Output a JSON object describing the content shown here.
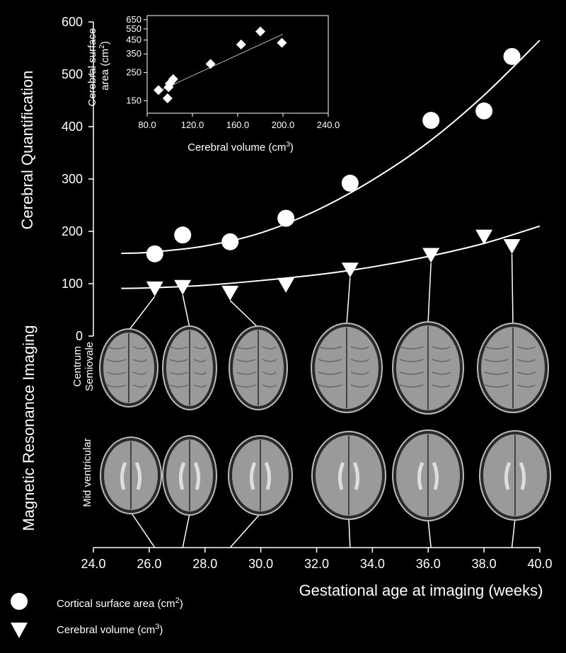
{
  "chart_data": [
    {
      "type": "scatter",
      "xlabel": "Gestational age at imaging (weeks)",
      "ylabel": "Cerebral Quantification",
      "xlim": [
        24,
        40
      ],
      "ylim": [
        0,
        600
      ],
      "xticks": [
        "24.0",
        "26.0",
        "28.0",
        "30.0",
        "32.0",
        "34.0",
        "36.0",
        "38.0",
        "40.0"
      ],
      "yticks": [
        "0",
        "100",
        "200",
        "300",
        "400",
        "500",
        "600"
      ],
      "series": [
        {
          "name": "Cortical surface area (cm2)",
          "marker": "circle",
          "x": [
            26.2,
            27.2,
            28.9,
            30.9,
            33.2,
            36.1,
            38.0,
            39.0
          ],
          "y": [
            157,
            193,
            180,
            225,
            292,
            412,
            430,
            534
          ]
        },
        {
          "name": "Cerebral volume (cm3)",
          "marker": "triangle-down",
          "x": [
            26.2,
            27.2,
            28.9,
            30.9,
            33.2,
            36.1,
            38.0,
            39.0
          ],
          "y": [
            92,
            95,
            84,
            99,
            128,
            156,
            191,
            173
          ]
        }
      ],
      "fits": [
        {
          "series": "Cortical surface area (cm2)",
          "x": [
            25.0,
            26.0,
            28.0,
            30.0,
            32.0,
            34.0,
            36.0,
            38.0,
            40.0
          ],
          "y": [
            158,
            160,
            172,
            197,
            240,
            298,
            370,
            460,
            565
          ]
        },
        {
          "series": "Cerebral volume (cm3)",
          "x": [
            25.0,
            26.0,
            28.0,
            30.0,
            32.0,
            34.0,
            36.0,
            38.0,
            40.0
          ],
          "y": [
            91,
            92,
            97,
            106,
            117,
            132,
            152,
            177,
            210
          ]
        }
      ],
      "legend_position": "bottom-left",
      "grid": false
    },
    {
      "type": "scatter",
      "xlabel": "Cerebral volume (cm3)",
      "ylabel": "Cerebral surface area (cm2)",
      "xlim": [
        80,
        240
      ],
      "y_scale": "log",
      "xticks": [
        "80.0",
        "120.0",
        "160.0",
        "200.0",
        "240.0"
      ],
      "yticks": [
        "150",
        "250",
        "350",
        "450",
        "550",
        "650"
      ],
      "x": [
        90,
        98,
        99,
        100,
        103,
        136,
        163,
        180,
        199
      ],
      "y": [
        182,
        157,
        192,
        205,
        222,
        292,
        415,
        525,
        428
      ],
      "fit": {
        "x": [
          88,
          200
        ],
        "y": [
          175,
          500
        ]
      }
    }
  ],
  "panel": {
    "y_title": "Magnetic Resonance Imaging",
    "rows": [
      "Centrum Semiovale",
      "Mid ventricular"
    ]
  },
  "legend": {
    "circle_label": "Cortical surface area (cm",
    "circle_sup": "2",
    "circle_close": ")",
    "triangle_label": "Cerebral volume (cm",
    "triangle_sup": "3",
    "triangle_close": ")"
  },
  "inset_labels": {
    "ylabel_line1": "Cerebral surface",
    "ylabel_line2": "area (cm",
    "ylabel_sup": "2",
    "ylabel_close": ")",
    "xlabel": "Cerebral volume (cm",
    "xlabel_sup": "3",
    "xlabel_close": ")"
  },
  "colors": {
    "background": "#000000",
    "foreground": "#ffffff",
    "inset_marker": "#ffffff",
    "mri_gray": "#9a9a9a"
  }
}
